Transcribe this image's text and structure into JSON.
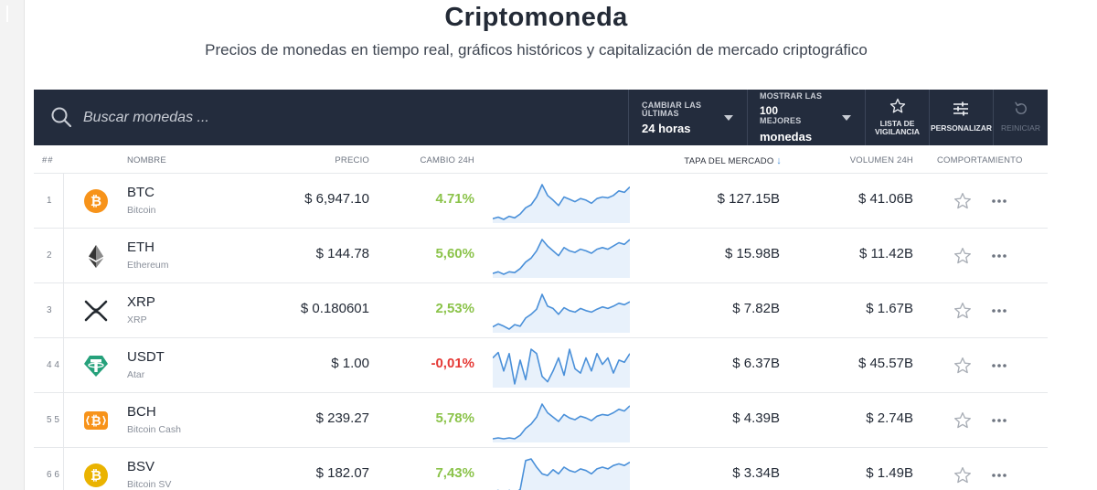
{
  "header": {
    "title": "Criptomoneda",
    "subtitle": "Precios de monedas en tiempo real, gráficos históricos y capitalización de mercado criptográfico"
  },
  "toolbar": {
    "search_placeholder": "Buscar monedas ...",
    "change_period": {
      "label_line1": "CAMBIAR LAS",
      "label_line2": "ÚLTIMAS",
      "value": "24 horas"
    },
    "show_top": {
      "label_line1": "MOSTRAR LAS",
      "count": "100",
      "label_line2": "MEJORES",
      "value": "monedas"
    },
    "watchlist": {
      "line1": "LISTA DE",
      "line2": "VIGILANCIA"
    },
    "customize_label": "PERSONALIZAR",
    "reset_label": "REINICIAR"
  },
  "columns": {
    "rank": "##",
    "name": "NOMBRE",
    "price": "PRECIO",
    "change": "CAMBIO 24H",
    "market_cap": "TAPA DEL MERCADO",
    "volume": "VOLUMEN 24H",
    "behavior": "COMPORTAMIENTO"
  },
  "colors": {
    "header_bg": "#232c3d",
    "positive": "#8bc34a",
    "negative": "#e53935",
    "sparkline": "#4a90d9",
    "sparkline_fill": "#e8f1fb"
  },
  "rows": [
    {
      "rank": "1",
      "symbol": "BTC",
      "name": "Bitcoin",
      "price": "$ 6,947.10",
      "change": "4.71%",
      "direction": "up",
      "market_cap": "$ 127.15B",
      "volume": "$ 41.06B",
      "icon": "bitcoin-icon",
      "spark": [
        30,
        32,
        29,
        33,
        31,
        36,
        44,
        48,
        58,
        74,
        60,
        54,
        47,
        58,
        55,
        52,
        56,
        54,
        50,
        56,
        58,
        57,
        60,
        66,
        64,
        71
      ]
    },
    {
      "rank": "2",
      "symbol": "ETH",
      "name": "Ethereum",
      "price": "$ 144.78",
      "change": "5,60%",
      "direction": "up",
      "market_cap": "$ 15.98B",
      "volume": "$ 11.42B",
      "icon": "ethereum-icon",
      "spark": [
        28,
        30,
        27,
        30,
        29,
        34,
        42,
        47,
        56,
        70,
        62,
        56,
        50,
        60,
        56,
        54,
        58,
        56,
        53,
        58,
        60,
        58,
        62,
        66,
        64,
        70
      ]
    },
    {
      "rank": "3",
      "symbol": "XRP",
      "name": "XRP",
      "price": "$ 0.180601",
      "change": "2,53%",
      "direction": "up",
      "market_cap": "$ 7.82B",
      "volume": "$ 1.67B",
      "icon": "xrp-icon",
      "spark": [
        30,
        34,
        31,
        27,
        33,
        31,
        42,
        47,
        54,
        74,
        58,
        55,
        47,
        56,
        52,
        50,
        55,
        52,
        50,
        54,
        57,
        55,
        58,
        62,
        60,
        64
      ]
    },
    {
      "rank": "4 4",
      "symbol": "USDT",
      "name": "Atar",
      "price": "$ 1.00",
      "change": "-0,01%",
      "direction": "down",
      "market_cap": "$ 6.37B",
      "volume": "$ 45.57B",
      "icon": "tether-icon",
      "spark": [
        62,
        67,
        50,
        66,
        38,
        60,
        42,
        70,
        66,
        45,
        40,
        50,
        62,
        46,
        70,
        52,
        48,
        62,
        50,
        66,
        56,
        62,
        48,
        60,
        58,
        66
      ]
    },
    {
      "rank": "5 5",
      "symbol": "BCH",
      "name": "Bitcoin Cash",
      "price": "$ 239.27",
      "change": "5,78%",
      "direction": "up",
      "market_cap": "$ 4.39B",
      "volume": "$ 2.74B",
      "icon": "bitcoin-cash-icon",
      "spark": [
        30,
        31,
        30,
        31,
        30,
        34,
        42,
        47,
        55,
        70,
        60,
        55,
        50,
        58,
        54,
        52,
        56,
        54,
        51,
        56,
        58,
        57,
        60,
        64,
        62,
        68
      ]
    },
    {
      "rank": "6 6",
      "symbol": "BSV",
      "name": "Bitcoin SV",
      "price": "$ 182.07",
      "change": "7,43%",
      "direction": "up",
      "market_cap": "$ 3.34B",
      "volume": "$ 1.49B",
      "icon": "bitcoin-sv-icon",
      "spark": [
        28,
        30,
        26,
        30,
        27,
        31,
        66,
        68,
        58,
        50,
        48,
        55,
        50,
        58,
        54,
        52,
        56,
        54,
        50,
        56,
        58,
        56,
        60,
        62,
        60,
        64
      ]
    }
  ]
}
